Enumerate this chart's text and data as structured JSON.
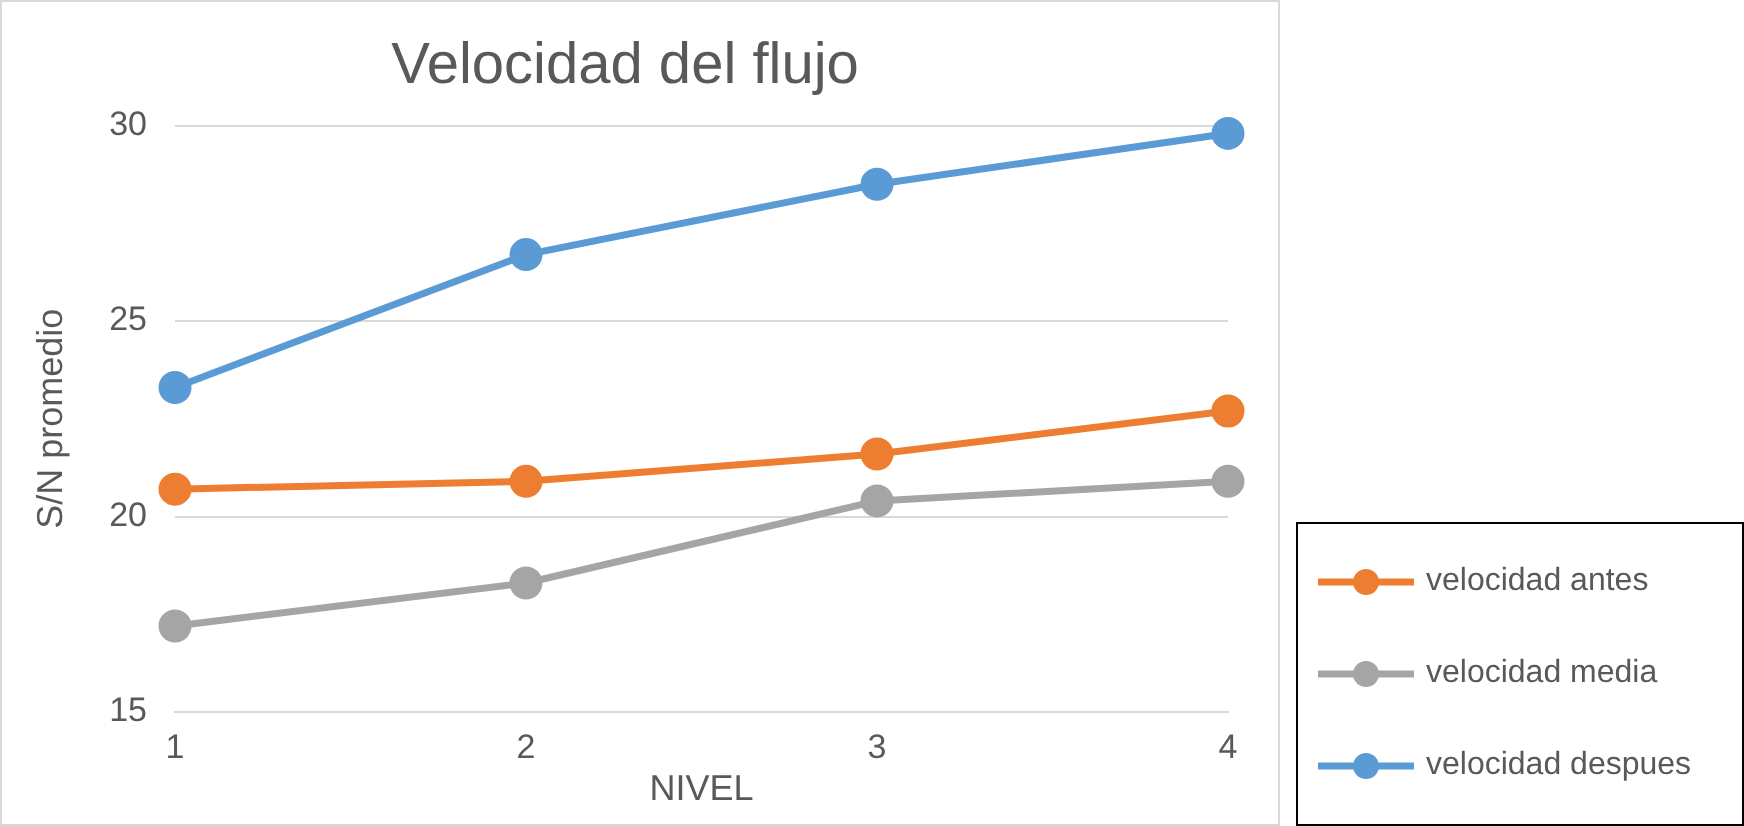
{
  "chart_data": {
    "type": "line",
    "title": "Velocidad del flujo",
    "xlabel": "NIVEL",
    "ylabel": "S/N promedio",
    "x": [
      1,
      2,
      3,
      4
    ],
    "xlim": [
      1,
      4
    ],
    "xticks": [
      1,
      2,
      3,
      4
    ],
    "ylim": [
      15,
      30
    ],
    "yticks": [
      15,
      20,
      25,
      30
    ],
    "grid": "y",
    "legend": "bottom right",
    "marker": "circle",
    "line_style": "solid",
    "series": [
      {
        "name": "velocidad antes",
        "color": "#ed7d31",
        "values": [
          20.7,
          20.9,
          21.6,
          22.7
        ]
      },
      {
        "name": "velocidad media",
        "color": "#a5a5a5",
        "values": [
          17.2,
          18.3,
          20.4,
          20.9
        ]
      },
      {
        "name": "velocidad despues",
        "color": "#5b9bd5",
        "values": [
          23.3,
          26.7,
          28.5,
          29.8
        ]
      }
    ]
  }
}
